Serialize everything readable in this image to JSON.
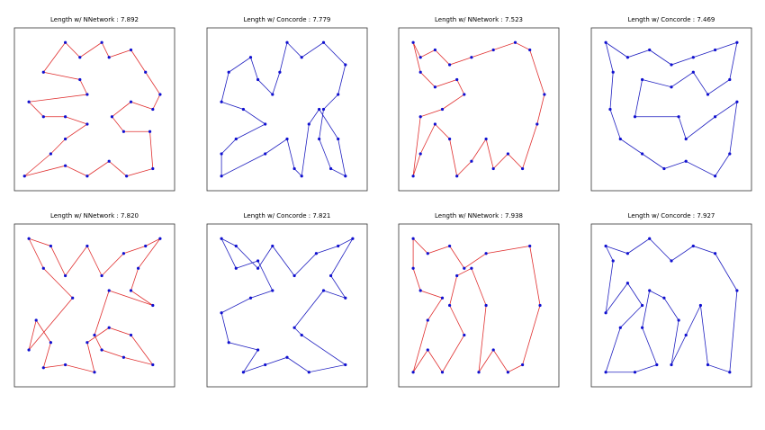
{
  "chart_data": [
    {
      "type": "tour",
      "title": "Length w/ NNetwork : 7.892",
      "color": "#e03030",
      "point_color": "#1010d0",
      "xlim": [
        0,
        1
      ],
      "ylim": [
        0,
        1
      ],
      "x": [
        0.02,
        0.3,
        0.45,
        0.6,
        0.72,
        0.9,
        0.88,
        0.7,
        0.62,
        0.75,
        0.9,
        0.95,
        0.85,
        0.75,
        0.6,
        0.55,
        0.4,
        0.3,
        0.15,
        0.4,
        0.45,
        0.05,
        0.15,
        0.3,
        0.45,
        0.3,
        0.2
      ],
      "y": [
        0.05,
        0.12,
        0.05,
        0.15,
        0.05,
        0.1,
        0.35,
        0.35,
        0.45,
        0.55,
        0.5,
        0.6,
        0.75,
        0.9,
        0.85,
        0.95,
        0.85,
        0.95,
        0.75,
        0.7,
        0.6,
        0.55,
        0.45,
        0.45,
        0.4,
        0.3,
        0.2
      ]
    },
    {
      "type": "tour",
      "title": "Length w/ Concorde : 7.779",
      "color": "#2020c0",
      "point_color": "#1010d0",
      "xlim": [
        0,
        1
      ],
      "ylim": [
        0,
        1
      ],
      "x": [
        0.05,
        0.35,
        0.5,
        0.55,
        0.6,
        0.65,
        0.72,
        0.85,
        0.9,
        0.8,
        0.72,
        0.75,
        0.85,
        0.9,
        0.75,
        0.6,
        0.5,
        0.45,
        0.4,
        0.3,
        0.25,
        0.1,
        0.05,
        0.2,
        0.35,
        0.15,
        0.05
      ],
      "y": [
        0.05,
        0.2,
        0.3,
        0.1,
        0.05,
        0.4,
        0.5,
        0.3,
        0.05,
        0.1,
        0.3,
        0.5,
        0.6,
        0.8,
        0.95,
        0.85,
        0.95,
        0.75,
        0.6,
        0.7,
        0.85,
        0.75,
        0.55,
        0.5,
        0.4,
        0.3,
        0.2
      ]
    },
    {
      "type": "tour",
      "title": "Length w/ NNetwork : 7.523",
      "color": "#e03030",
      "point_color": "#1010d0",
      "xlim": [
        0,
        1
      ],
      "ylim": [
        0,
        1
      ],
      "x": [
        0.05,
        0.1,
        0.2,
        0.3,
        0.45,
        0.6,
        0.75,
        0.85,
        0.95,
        0.9,
        0.8,
        0.7,
        0.6,
        0.55,
        0.45,
        0.35,
        0.3,
        0.2,
        0.1,
        0.05,
        0.1,
        0.25,
        0.4,
        0.35,
        0.2,
        0.1
      ],
      "y": [
        0.95,
        0.85,
        0.9,
        0.8,
        0.85,
        0.9,
        0.95,
        0.9,
        0.6,
        0.4,
        0.1,
        0.2,
        0.1,
        0.3,
        0.15,
        0.05,
        0.3,
        0.4,
        0.2,
        0.05,
        0.45,
        0.5,
        0.6,
        0.7,
        0.65,
        0.75
      ]
    },
    {
      "type": "tour",
      "title": "Length w/ Concorde : 7.469",
      "color": "#2020c0",
      "point_color": "#1010d0",
      "xlim": [
        0,
        1
      ],
      "ylim": [
        0,
        1
      ],
      "x": [
        0.05,
        0.2,
        0.35,
        0.5,
        0.65,
        0.8,
        0.95,
        0.9,
        0.75,
        0.65,
        0.5,
        0.3,
        0.25,
        0.55,
        0.6,
        0.8,
        0.95,
        0.9,
        0.8,
        0.6,
        0.45,
        0.3,
        0.15,
        0.08,
        0.1
      ],
      "y": [
        0.95,
        0.85,
        0.9,
        0.8,
        0.85,
        0.9,
        0.95,
        0.7,
        0.6,
        0.75,
        0.65,
        0.7,
        0.45,
        0.45,
        0.3,
        0.45,
        0.55,
        0.2,
        0.05,
        0.15,
        0.1,
        0.2,
        0.3,
        0.5,
        0.75
      ]
    },
    {
      "type": "tour",
      "title": "Length w/ NNetwork : 7.820",
      "color": "#e03030",
      "point_color": "#1010d0",
      "xlim": [
        0,
        1
      ],
      "ylim": [
        0,
        1
      ],
      "x": [
        0.05,
        0.2,
        0.3,
        0.45,
        0.55,
        0.7,
        0.85,
        0.95,
        0.8,
        0.75,
        0.9,
        0.6,
        0.5,
        0.55,
        0.7,
        0.9,
        0.75,
        0.6,
        0.45,
        0.5,
        0.3,
        0.15,
        0.2,
        0.1,
        0.05,
        0.35,
        0.15
      ],
      "y": [
        0.95,
        0.9,
        0.7,
        0.9,
        0.7,
        0.85,
        0.9,
        0.95,
        0.75,
        0.6,
        0.5,
        0.6,
        0.3,
        0.2,
        0.15,
        0.1,
        0.3,
        0.35,
        0.25,
        0.05,
        0.1,
        0.08,
        0.25,
        0.4,
        0.2,
        0.55,
        0.75
      ]
    },
    {
      "type": "tour",
      "title": "Length w/ Concorde : 7.821",
      "color": "#2020c0",
      "point_color": "#1010d0",
      "xlim": [
        0,
        1
      ],
      "ylim": [
        0,
        1
      ],
      "x": [
        0.05,
        0.15,
        0.3,
        0.4,
        0.55,
        0.7,
        0.85,
        0.95,
        0.8,
        0.9,
        0.75,
        0.55,
        0.6,
        0.9,
        0.65,
        0.5,
        0.35,
        0.2,
        0.3,
        0.1,
        0.05,
        0.25,
        0.4,
        0.3,
        0.15
      ],
      "y": [
        0.95,
        0.9,
        0.75,
        0.9,
        0.7,
        0.85,
        0.9,
        0.95,
        0.7,
        0.55,
        0.6,
        0.35,
        0.3,
        0.1,
        0.05,
        0.15,
        0.1,
        0.05,
        0.2,
        0.25,
        0.45,
        0.55,
        0.6,
        0.8,
        0.75
      ]
    },
    {
      "type": "tour",
      "title": "Length w/ NNetwork : 7.938",
      "color": "#e03030",
      "point_color": "#1010d0",
      "xlim": [
        0,
        1
      ],
      "ylim": [
        0,
        1
      ],
      "x": [
        0.05,
        0.15,
        0.3,
        0.4,
        0.55,
        0.85,
        0.92,
        0.8,
        0.7,
        0.6,
        0.5,
        0.55,
        0.45,
        0.35,
        0.3,
        0.4,
        0.25,
        0.15,
        0.05,
        0.15,
        0.25,
        0.1,
        0.05
      ],
      "y": [
        0.95,
        0.85,
        0.9,
        0.75,
        0.85,
        0.9,
        0.5,
        0.1,
        0.05,
        0.2,
        0.05,
        0.5,
        0.75,
        0.7,
        0.5,
        0.3,
        0.05,
        0.2,
        0.05,
        0.4,
        0.55,
        0.6,
        0.75
      ]
    },
    {
      "type": "tour",
      "title": "Length w/ Concorde : 7.927",
      "color": "#2020c0",
      "point_color": "#1010d0",
      "xlim": [
        0,
        1
      ],
      "ylim": [
        0,
        1
      ],
      "x": [
        0.05,
        0.2,
        0.35,
        0.5,
        0.65,
        0.8,
        0.95,
        0.9,
        0.75,
        0.7,
        0.6,
        0.5,
        0.55,
        0.45,
        0.35,
        0.3,
        0.4,
        0.25,
        0.05,
        0.15,
        0.3,
        0.2,
        0.05,
        0.1
      ],
      "y": [
        0.9,
        0.85,
        0.95,
        0.8,
        0.9,
        0.85,
        0.6,
        0.05,
        0.1,
        0.5,
        0.3,
        0.1,
        0.4,
        0.55,
        0.6,
        0.35,
        0.1,
        0.05,
        0.05,
        0.35,
        0.5,
        0.65,
        0.45,
        0.8
      ]
    }
  ]
}
